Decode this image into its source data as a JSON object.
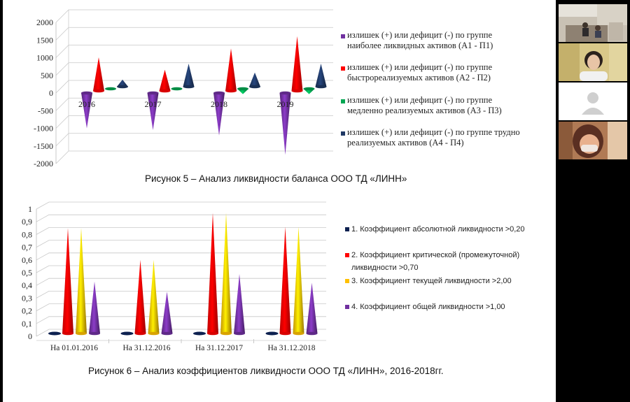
{
  "colors": {
    "purple": "#7030a0",
    "red": "#ff0000",
    "green": "#00a651",
    "navy": "#1f3864",
    "yellow": "#ffc000",
    "dark_navy": "#0d2150"
  },
  "chart1": {
    "caption": "Рисунок 5 – Анализ ликвидности баланса ООО ТД «ЛИНН»",
    "chart_data": {
      "type": "bar",
      "style": "3d-cone",
      "categories": [
        "2016",
        "2017",
        "2018",
        "2019"
      ],
      "ylim": [
        -2000,
        2000
      ],
      "yticks": [
        "2000",
        "1500",
        "1000",
        "500",
        "0",
        "-500",
        "-1000",
        "-1500",
        "-2000"
      ],
      "series": [
        {
          "name": "излишек (+) или дефицит (-) по группе наиболее ликвидных активов (А1 - П1)",
          "color": "#7030a0",
          "values": [
            -1000,
            -1050,
            -1200,
            -1750
          ]
        },
        {
          "name": "излишек (+) или дефицит (-) по группе быстрореализуемых активов (А2 - П2)",
          "color": "#ff0000",
          "values": [
            950,
            600,
            1200,
            1550
          ]
        },
        {
          "name": "излишек (+) или дефицит (-) по группе медленно реализуемых активов (А3 - П3)",
          "color": "#00a651",
          "values": [
            0,
            0,
            -150,
            -150
          ]
        },
        {
          "name": "излишек (+) или дефицит (-) по группе трудно реализуемых активов (А4 - П4)",
          "color": "#1f3864",
          "values": [
            200,
            650,
            400,
            650
          ]
        }
      ],
      "legend_position": "right",
      "grid": true
    }
  },
  "chart2": {
    "caption": "Рисунок 6 – Анализ коэффициентов ликвидности ООО ТД «ЛИНН», 2016-2018гг.",
    "chart_data": {
      "type": "bar",
      "style": "3d-cone",
      "categories": [
        "На 01.01.2016",
        "На 31.12.2016",
        "На 31.12.2017",
        "На 31.12.2018"
      ],
      "ylim": [
        0,
        1
      ],
      "yticks": [
        "1",
        "0,9",
        "0,8",
        "0,7",
        "0,6",
        "0,5",
        "0,4",
        "0,3",
        "0,2",
        "0,1",
        "0"
      ],
      "series": [
        {
          "name": "1. Коэффициент абсолютной ликвидности >0,20",
          "color": "#0d2150",
          "values": [
            0.01,
            0.01,
            0.01,
            0.01
          ]
        },
        {
          "name": "2. Коэффициент критической (промежуточной) ликвидности >0,70",
          "color": "#ff0000",
          "values": [
            0.85,
            0.6,
            0.97,
            0.86
          ]
        },
        {
          "name": "3. Коэффициент текущей ликвидности >2,00",
          "color": "#ffc000",
          "values": [
            0.85,
            0.6,
            0.97,
            0.86
          ]
        },
        {
          "name": "4. Коэффициент общей ликвидности >1,00",
          "color": "#7030a0",
          "values": [
            0.43,
            0.35,
            0.49,
            0.42
          ]
        }
      ],
      "legend_position": "right",
      "grid": true
    }
  },
  "participants": [
    {
      "icon": "participant-video-classroom"
    },
    {
      "icon": "participant-video-woman"
    },
    {
      "icon": "default-avatar-icon"
    },
    {
      "icon": "participant-video-masked"
    }
  ]
}
